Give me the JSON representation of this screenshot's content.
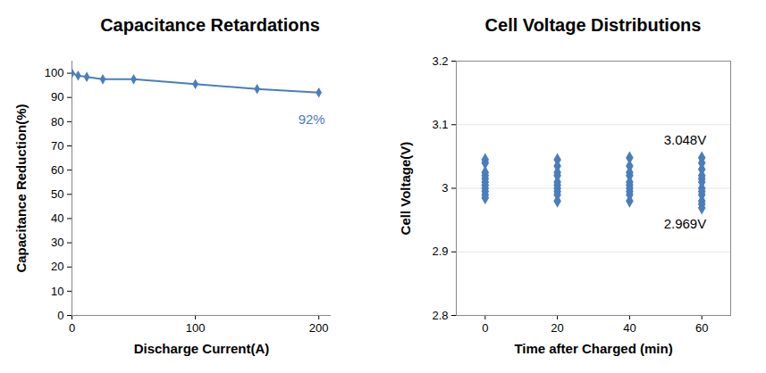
{
  "chart_data": [
    {
      "type": "line",
      "title": "Capacitance Retardations",
      "x_label": "Discharge Current(A)",
      "y_label": "Capacitance Reduction(%)",
      "x": [
        0,
        5,
        12,
        25,
        50,
        100,
        150,
        200
      ],
      "values": [
        100,
        99,
        98.5,
        97.5,
        97.5,
        95.5,
        93.5,
        92
      ],
      "color": "#4a7ebb",
      "marker": "diamond",
      "xlim": [
        0,
        210
      ],
      "xticks": [
        0,
        100,
        200
      ],
      "ylim": [
        0,
        105
      ],
      "yticks": [
        0,
        10,
        20,
        30,
        40,
        50,
        60,
        70,
        80,
        90,
        100
      ],
      "grid": false,
      "annotations": [
        {
          "text": "92%",
          "x": 200,
          "y": 92
        }
      ]
    },
    {
      "type": "scatter",
      "title": "Cell Voltage Distributions",
      "x_label": "Time after Charged (min)",
      "y_label": "Cell Voltage(V)",
      "x": [
        0,
        0,
        0,
        0,
        0,
        0,
        0,
        0,
        0,
        0,
        0,
        20,
        20,
        20,
        20,
        20,
        20,
        20,
        20,
        20,
        20,
        40,
        40,
        40,
        40,
        40,
        40,
        40,
        40,
        40,
        40,
        60,
        60,
        60,
        60,
        60,
        60,
        60,
        60,
        60,
        60,
        60,
        60
      ],
      "values": [
        3.045,
        3.04,
        3.025,
        3.02,
        3.015,
        3.01,
        3.005,
        3.0,
        2.995,
        2.99,
        2.985,
        3.045,
        3.035,
        3.025,
        3.02,
        3.01,
        3.005,
        3.0,
        2.995,
        2.99,
        2.98,
        3.048,
        3.035,
        3.025,
        3.02,
        3.01,
        3.005,
        3.0,
        2.995,
        2.99,
        2.98,
        3.048,
        3.04,
        3.03,
        3.02,
        3.015,
        3.01,
        3.0,
        2.995,
        2.99,
        2.98,
        2.975,
        2.969
      ],
      "color": "#4a7ebb",
      "marker": "diamond",
      "xlim": [
        -8,
        68
      ],
      "xticks": [
        0,
        20,
        40,
        60
      ],
      "ylim": [
        2.8,
        3.2
      ],
      "yticks": [
        2.8,
        2.9,
        3,
        3.1,
        3.2
      ],
      "grid": true,
      "annotations": [
        {
          "text": "3.048V",
          "x": 60,
          "y": 3.048
        },
        {
          "text": "2.969V",
          "x": 60,
          "y": 2.969
        }
      ]
    }
  ]
}
